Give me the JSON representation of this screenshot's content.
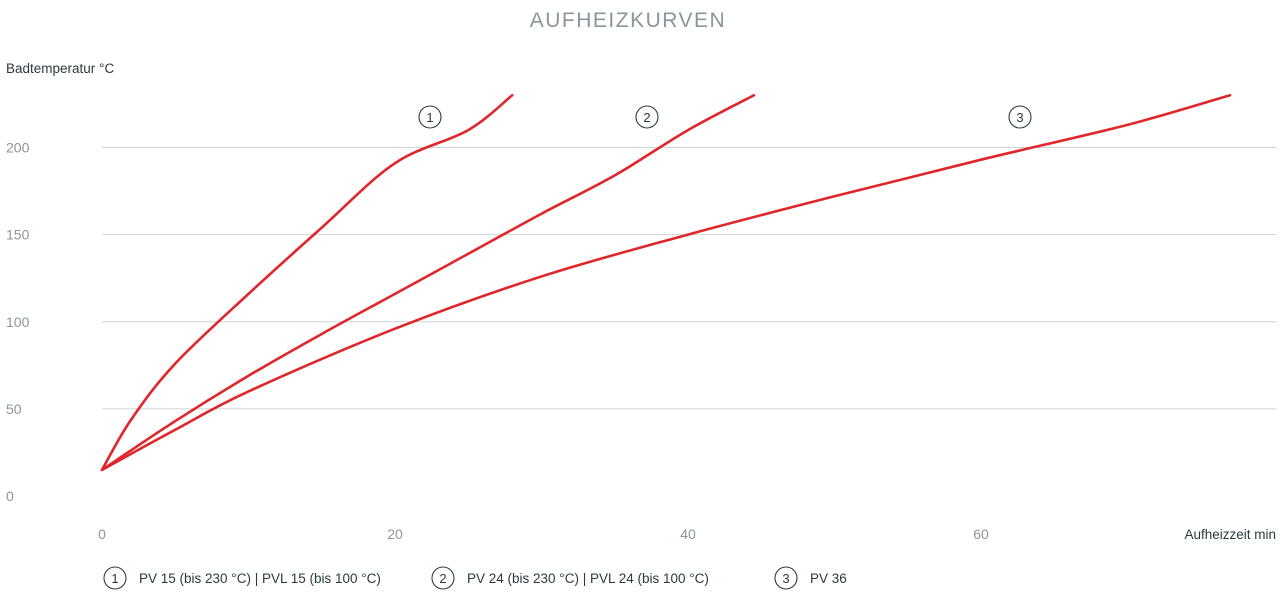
{
  "chart_data": {
    "type": "line",
    "title": "AUFHEIZKURVEN",
    "ylabel": "Badtemperatur °C",
    "xlabel": "Aufheizzeit min",
    "xlim": [
      0,
      78
    ],
    "ylim": [
      0,
      230
    ],
    "xticks": [
      0,
      20,
      40,
      60
    ],
    "yticks": [
      0,
      50,
      100,
      150,
      200
    ],
    "grid": "horizontal",
    "colors": {
      "curve": "#e0262a",
      "grid": "#cfd4d7",
      "title": "#8a969c",
      "text": "#2c3a40"
    },
    "series": [
      {
        "marker": "1",
        "legend": "PV 15 (bis 230 °C) | PVL 15 (bis 100 °C)",
        "x": [
          0,
          2,
          5,
          10,
          15,
          20,
          25,
          28
        ],
        "y": [
          15,
          44,
          76,
          116,
          154,
          191,
          210,
          230
        ]
      },
      {
        "marker": "2",
        "legend": "PV 24 (bis 230 °C) | PVL 24 (bis 100 °C)",
        "x": [
          0,
          5,
          10,
          15,
          20,
          25,
          30,
          35,
          40,
          44.5
        ],
        "y": [
          15,
          43,
          69,
          93,
          116,
          139,
          162,
          184,
          210,
          230
        ]
      },
      {
        "marker": "3",
        "legend": "PV 36",
        "x": [
          0,
          5,
          10,
          20,
          30,
          40,
          50,
          60,
          70,
          77
        ],
        "y": [
          15,
          38,
          60,
          96,
          126,
          150,
          172,
          193,
          213,
          230
        ]
      }
    ]
  }
}
